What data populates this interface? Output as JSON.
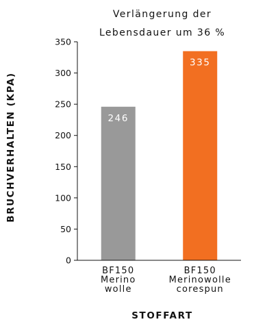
{
  "chart_data": {
    "type": "bar",
    "title": [
      "Verlängerung der",
      "Lebensdauer um 36 %"
    ],
    "xlabel": "STOFFART",
    "ylabel": "BRUCHVERHALTEN (KPA)",
    "ylim": [
      0,
      350
    ],
    "yticks": [
      0,
      50,
      100,
      150,
      200,
      250,
      300,
      350
    ],
    "categories": [
      [
        "BF150",
        "Merino",
        "wolle"
      ],
      [
        "BF150",
        "Merinowolle",
        "corespun"
      ]
    ],
    "values": [
      246,
      335
    ],
    "data_labels": [
      "246",
      "335"
    ],
    "colors": [
      "#999999",
      "#f26f21"
    ],
    "grid": false,
    "legend": "none"
  }
}
